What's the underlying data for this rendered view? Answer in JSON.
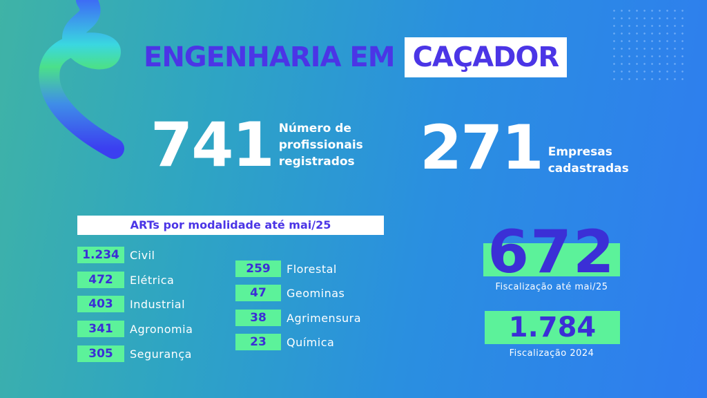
{
  "title": {
    "part1": "ENGENHARIA EM",
    "part2": "CAÇADOR"
  },
  "stats": [
    {
      "value": "741",
      "label_lines": [
        "Número de",
        "profissionais",
        "registrados"
      ]
    },
    {
      "value": "271",
      "label_lines": [
        "Empresas",
        "cadastradas"
      ]
    }
  ],
  "arts": {
    "header": "ARTs por modalidade até mai/25",
    "left": [
      {
        "value": "1.234",
        "label": "Civil"
      },
      {
        "value": "472",
        "label": "Elétrica"
      },
      {
        "value": "403",
        "label": "Industrial"
      },
      {
        "value": "341",
        "label": "Agronomia"
      },
      {
        "value": "305",
        "label": "Segurança"
      }
    ],
    "right": [
      {
        "value": "259",
        "label": "Florestal"
      },
      {
        "value": "47",
        "label": "Geominas"
      },
      {
        "value": "38",
        "label": "Agrimensura"
      },
      {
        "value": "23",
        "label": "Química"
      }
    ]
  },
  "fiscalizacao": [
    {
      "value": "672",
      "label": "Fiscalização até mai/25"
    },
    {
      "value": "1.784",
      "label": "Fiscalização 2024"
    }
  ],
  "colors": {
    "accent_purple": "#4b35e6",
    "accent_green": "#5cf29a"
  }
}
